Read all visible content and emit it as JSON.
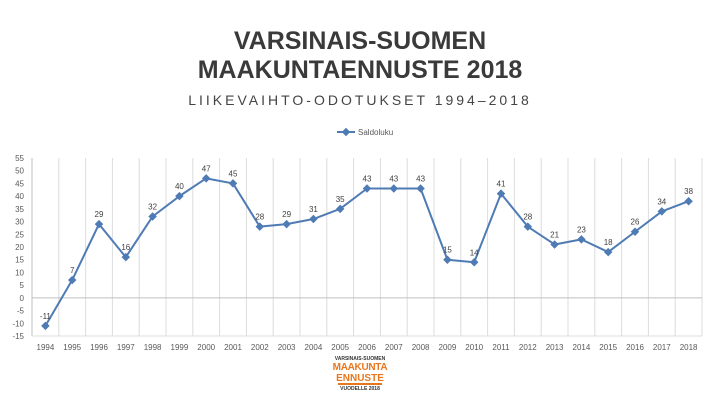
{
  "title_line1": "VARSINAIS-SUOMEN",
  "title_line2": "MAAKUNTAENNUSTE 2018",
  "subtitle": "LIIKEVAIHTO-ODOTUKSET 1994–2018",
  "logo": {
    "line1": "VARSINAIS-SUOMEN",
    "line2": "MAAKUNTA",
    "line3": "ENNUSTE",
    "line4": "VUODELLE 2018"
  },
  "chart_data": {
    "type": "line",
    "title": "",
    "xlabel": "",
    "ylabel": "",
    "categories": [
      "1994",
      "1995",
      "1996",
      "1997",
      "1998",
      "1999",
      "2000",
      "2001",
      "2002",
      "2003",
      "2004",
      "2005",
      "2006",
      "2007",
      "2008",
      "2009",
      "2010",
      "2011",
      "2012",
      "2013",
      "2014",
      "2015",
      "2016",
      "2017",
      "2018"
    ],
    "series": [
      {
        "name": "Saldoluku",
        "values": [
          -11,
          7,
          29,
          16,
          32,
          40,
          47,
          45,
          28,
          29,
          31,
          35,
          43,
          43,
          43,
          15,
          14,
          41,
          28,
          21,
          23,
          18,
          26,
          34,
          38
        ],
        "color": "#4f7bb5"
      }
    ],
    "ylim": [
      -15,
      55
    ],
    "yticks": [
      "-15",
      "-10",
      "-5",
      "0",
      "5",
      "10",
      "15",
      "20",
      "25",
      "30",
      "35",
      "40",
      "45",
      "50",
      "55"
    ],
    "grid": "vertical",
    "legend_position": "top-center",
    "data_labels": true
  }
}
